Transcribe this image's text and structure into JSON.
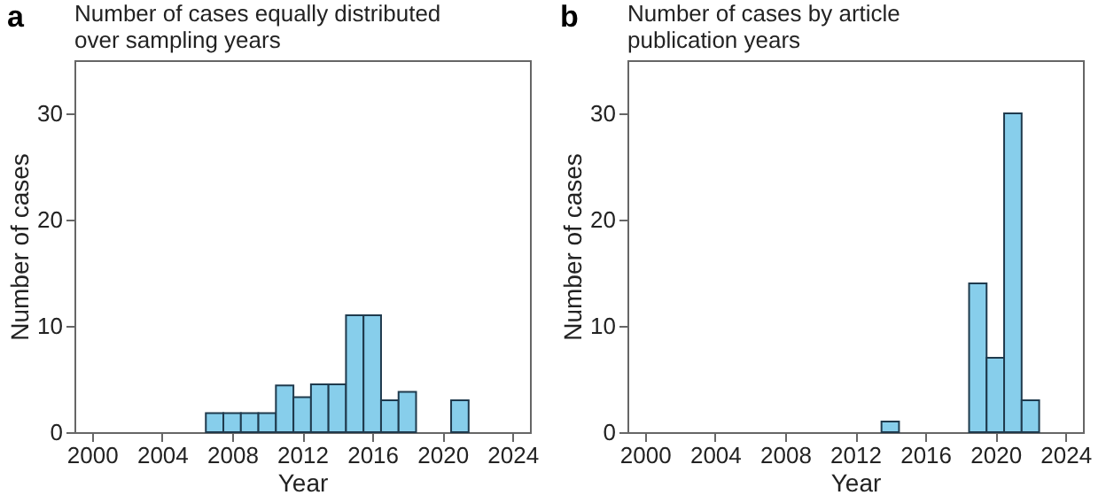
{
  "chart_data": [
    {
      "type": "histogram",
      "title": "Number of cases equally distributed over sampling years",
      "xlabel": "Year",
      "ylabel": "Number of cases",
      "annotations": [
        "a"
      ],
      "bins": [
        2006.5,
        2007.5,
        2008.5,
        2009.5,
        2010.5,
        2011.5,
        2012.5,
        2013.5,
        2014.5,
        2015.5,
        2016.5,
        2017.5,
        2018.5,
        2019.5,
        2020.5,
        2021.5
      ],
      "values": [
        1.8,
        1.8,
        1.8,
        1.8,
        4.4,
        3.3,
        4.5,
        4.5,
        11,
        11,
        3,
        3.8,
        0,
        0,
        3
      ],
      "color": "#87ceeb",
      "xlim": [
        1999,
        2025
      ],
      "xticks": [
        2000,
        2004,
        2008,
        2012,
        2016,
        2020,
        2024
      ],
      "ylim": [
        0,
        35
      ],
      "yticks": [
        0,
        10,
        20,
        30
      ],
      "grid": false
    },
    {
      "type": "histogram",
      "title": "Number of cases by article publication years",
      "xlabel": "Year",
      "ylabel": "Number of cases",
      "annotations": [
        "b"
      ],
      "bins": [
        2013.5,
        2014.5,
        2015.5,
        2016.5,
        2017.5,
        2018.5,
        2019.5,
        2020.5,
        2021.5,
        2022.5
      ],
      "values": [
        1,
        0,
        0,
        0,
        0,
        14,
        7,
        30,
        3
      ],
      "color": "#87ceeb",
      "xlim": [
        1999,
        2025
      ],
      "xticks": [
        2000,
        2004,
        2008,
        2012,
        2016,
        2020,
        2024
      ],
      "ylim": [
        0,
        35
      ],
      "yticks": [
        0,
        10,
        20,
        30
      ],
      "grid": false
    }
  ]
}
